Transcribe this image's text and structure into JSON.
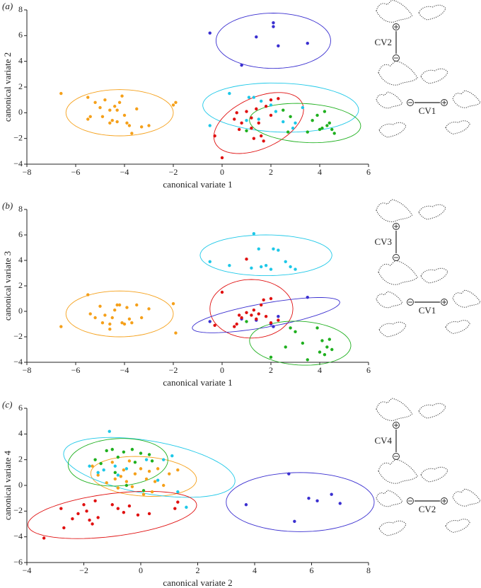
{
  "chart_data": [
    {
      "type": "scatter",
      "panel_label": "(a)",
      "xlabel": "canonical variate 1",
      "ylabel": "canonical variate 2",
      "xlim": [
        -8,
        6
      ],
      "ylim": [
        -4,
        8
      ],
      "xticks": [
        {
          "value": -8,
          "label": "−8"
        },
        {
          "value": -6,
          "label": "−6"
        },
        {
          "value": -4,
          "label": "−4"
        },
        {
          "value": -2,
          "label": "−2"
        },
        0,
        2,
        4,
        6
      ],
      "yticks": [
        {
          "value": -4,
          "label": "−4"
        },
        {
          "value": -2,
          "label": "−2"
        },
        0,
        2,
        4,
        6,
        8
      ],
      "series": [
        {
          "color": "#f5a01a",
          "x": [
            -6.6,
            -5.5,
            -5.4,
            -5.5,
            -5.0,
            -4.9,
            -4.8,
            -4.6,
            -4.5,
            -4.4,
            -4.3,
            -4.2,
            -4.1,
            -4.0,
            -3.9,
            -3.8,
            -3.7,
            -3.5,
            -3.3,
            -3.0,
            -4.6,
            -4.3,
            -2.0,
            -1.9,
            -5.2
          ],
          "y": [
            1.5,
            1.2,
            -0.3,
            -0.5,
            0.4,
            -0.3,
            1.0,
            0.2,
            -0.6,
            0.5,
            0.2,
            0.8,
            1.3,
            -0.2,
            -0.8,
            -1.0,
            -1.6,
            0.3,
            -1.1,
            -1.0,
            -0.8,
            -0.7,
            0.6,
            0.8,
            0.8
          ]
        },
        {
          "color": "#3a2fd0",
          "x": [
            -0.5,
            1.4,
            2.1,
            2.1,
            2.3,
            3.5,
            0.8
          ],
          "y": [
            6.2,
            5.9,
            7.0,
            6.7,
            5.2,
            5.4,
            3.7
          ]
        },
        {
          "color": "#1ec8e8",
          "x": [
            0.3,
            -0.5,
            1.1,
            1.3,
            1.6,
            2.0,
            2.2,
            2.5,
            2.9,
            3.0,
            3.3,
            1.5,
            1.0
          ],
          "y": [
            1.5,
            -1.0,
            1.2,
            1.2,
            0.9,
            0.6,
            0.1,
            -0.7,
            -1.2,
            -0.8,
            0.4,
            -0.5,
            -0.6
          ]
        },
        {
          "color": "#e01010",
          "x": [
            0.0,
            -0.3,
            0.5,
            0.6,
            0.8,
            1.0,
            1.2,
            1.3,
            1.4,
            1.5,
            1.6,
            1.7,
            1.8,
            2.0,
            2.3,
            2.0,
            0.7,
            1.2
          ],
          "y": [
            -3.5,
            -1.8,
            -0.5,
            0.0,
            -0.8,
            0.1,
            -0.4,
            -2.0,
            0.3,
            -0.8,
            -1.8,
            -2.2,
            0.5,
            1.0,
            1.1,
            -0.2,
            -1.3,
            -1.2
          ]
        },
        {
          "color": "#1fb01f",
          "x": [
            1.0,
            2.5,
            2.8,
            3.7,
            3.9,
            4.1,
            4.2,
            4.3,
            4.4,
            4.5,
            4.6,
            4.0,
            3.5,
            2.7
          ],
          "y": [
            -1.4,
            0.2,
            -0.3,
            -0.6,
            -0.2,
            -1.2,
            0.1,
            -1.0,
            -0.8,
            -1.3,
            -1.6,
            -1.3,
            -1.5,
            -1.5
          ]
        }
      ],
      "ellipses": [
        {
          "color": "#f5a01a",
          "center": [
            -4.2,
            0.0
          ],
          "radii": [
            2.2,
            1.8
          ],
          "angle": 0
        },
        {
          "color": "#3a2fd0",
          "center": [
            2.1,
            5.6
          ],
          "radii": [
            2.35,
            2.15
          ],
          "angle": 0
        },
        {
          "color": "#1ec8e8",
          "center": [
            2.4,
            0.4
          ],
          "radii": [
            3.2,
            1.9
          ],
          "angle": -5
        },
        {
          "color": "#e01010",
          "center": [
            1.5,
            -0.8
          ],
          "radii": [
            2.6,
            1.5
          ],
          "angle": 60
        },
        {
          "color": "#1fb01f",
          "center": [
            3.4,
            -0.8
          ],
          "radii": [
            2.3,
            1.5
          ],
          "angle": -10
        }
      ],
      "diagram": {
        "vertical": "CV2",
        "horizontal": "CV1"
      }
    },
    {
      "type": "scatter",
      "panel_label": "(b)",
      "xlabel": "canonical variate 1",
      "ylabel": "canonical variate 3",
      "xlim": [
        -8,
        6
      ],
      "ylim": [
        -4,
        8
      ],
      "xticks": [
        {
          "value": -8,
          "label": "−8"
        },
        {
          "value": -6,
          "label": "−6"
        },
        {
          "value": -4,
          "label": "−4"
        },
        {
          "value": -2,
          "label": "−2"
        },
        0,
        2,
        4,
        6
      ],
      "yticks": [
        {
          "value": -4,
          "label": "−4"
        },
        {
          "value": -2,
          "label": "−2"
        },
        0,
        2,
        4,
        6,
        8
      ],
      "series": [
        {
          "color": "#f5a01a",
          "x": [
            -6.6,
            -5.5,
            -5.4,
            -5.0,
            -4.9,
            -4.8,
            -4.6,
            -4.5,
            -4.4,
            -4.3,
            -4.2,
            -4.1,
            -4.0,
            -3.9,
            -3.8,
            -3.7,
            -3.5,
            -3.3,
            -3.0,
            -4.6,
            -2.0,
            -1.9,
            -5.2
          ],
          "y": [
            -1.2,
            1.3,
            -0.2,
            0.4,
            -0.9,
            -0.3,
            -1.4,
            -0.5,
            0.1,
            0.5,
            0.5,
            -0.9,
            -1.0,
            0.3,
            -0.6,
            -0.9,
            0.5,
            -0.5,
            0.2,
            -1.0,
            0.6,
            -1.7,
            -0.5
          ]
        },
        {
          "color": "#3a2fd0",
          "x": [
            -0.5,
            1.4,
            2.0,
            2.1,
            2.3,
            3.5,
            0.8
          ],
          "y": [
            -0.8,
            -0.7,
            -1.0,
            -1.2,
            -0.4,
            1.1,
            -0.6
          ]
        },
        {
          "color": "#1ec8e8",
          "x": [
            -0.5,
            0.3,
            1.3,
            1.5,
            1.2,
            1.6,
            2.0,
            2.3,
            2.6,
            2.8,
            3.0,
            2.1,
            1.8
          ],
          "y": [
            3.9,
            3.6,
            6.1,
            4.9,
            3.4,
            3.5,
            3.3,
            4.8,
            3.9,
            3.5,
            3.3,
            4.9,
            3.6
          ]
        },
        {
          "color": "#e01010",
          "x": [
            0.0,
            -0.3,
            0.5,
            0.6,
            0.8,
            1.0,
            1.2,
            1.3,
            1.4,
            1.5,
            1.6,
            1.7,
            1.8,
            2.0,
            2.3,
            2.0,
            0.7,
            1.0
          ],
          "y": [
            1.5,
            -1.1,
            -1.2,
            -1.0,
            -0.5,
            4.1,
            -0.3,
            0.1,
            -0.6,
            -0.2,
            0.5,
            0.9,
            -0.4,
            1.0,
            -0.7,
            -0.9,
            -0.3,
            -0.1
          ]
        },
        {
          "color": "#1fb01f",
          "x": [
            1.0,
            2.0,
            2.8,
            3.0,
            3.3,
            3.9,
            4.1,
            4.2,
            4.3,
            4.5,
            4.0,
            3.5,
            2.6,
            4.4
          ],
          "y": [
            -0.8,
            -3.6,
            -1.3,
            -1.6,
            -2.5,
            -1.3,
            -2.3,
            -3.4,
            -2.8,
            -3.0,
            -3.2,
            -3.8,
            -2.8,
            -2.2
          ]
        }
      ],
      "ellipses": [
        {
          "color": "#f5a01a",
          "center": [
            -4.2,
            -0.2
          ],
          "radii": [
            2.2,
            1.8
          ],
          "angle": 0
        },
        {
          "color": "#1ec8e8",
          "center": [
            1.8,
            4.4
          ],
          "radii": [
            2.7,
            1.6
          ],
          "angle": 0
        },
        {
          "color": "#e01010",
          "center": [
            1.2,
            0.2
          ],
          "radii": [
            1.7,
            2.3
          ],
          "angle": 0
        },
        {
          "color": "#3a2fd0",
          "center": [
            1.8,
            -0.3
          ],
          "radii": [
            3.2,
            0.9
          ],
          "angle": 20
        },
        {
          "color": "#1fb01f",
          "center": [
            3.2,
            -2.5
          ],
          "radii": [
            2.1,
            1.7
          ],
          "angle": -15
        }
      ],
      "diagram": {
        "vertical": "CV3",
        "horizontal": "CV1"
      }
    },
    {
      "type": "scatter",
      "panel_label": "(c)",
      "xlabel": "canonical variate 2",
      "ylabel": "canonical variate 4",
      "xlim": [
        -4,
        8
      ],
      "ylim": [
        -6,
        6
      ],
      "xticks": [
        {
          "value": -4,
          "label": "−4"
        },
        {
          "value": -2,
          "label": "−2"
        },
        0,
        2,
        4,
        6,
        8
      ],
      "yticks": [
        {
          "value": -6,
          "label": "−6"
        },
        {
          "value": -4,
          "label": "−4"
        },
        {
          "value": -2,
          "label": "−2"
        },
        0,
        2,
        4,
        6
      ],
      "series": [
        {
          "color": "#f5a01a",
          "x": [
            -1.7,
            -1.5,
            -1.2,
            -1.0,
            -0.9,
            -0.8,
            -0.6,
            -0.5,
            -0.4,
            -0.3,
            -0.2,
            0.0,
            0.1,
            0.2,
            0.3,
            0.5,
            0.6,
            0.8,
            1.0,
            1.3,
            -0.7,
            0.4
          ],
          "y": [
            1.5,
            0.8,
            0.2,
            1.8,
            0.5,
            -0.2,
            1.2,
            0.3,
            1.9,
            -0.1,
            0.9,
            1.3,
            -0.7,
            0.5,
            1.1,
            0.3,
            1.3,
            0.0,
            0.9,
            1.2,
            0.7,
            -0.5
          ]
        },
        {
          "color": "#3a2fd0",
          "x": [
            3.7,
            5.2,
            5.4,
            5.9,
            6.2,
            6.7,
            7.0
          ],
          "y": [
            -1.5,
            0.9,
            -2.8,
            -1.0,
            -1.2,
            -0.7,
            -1.4
          ]
        },
        {
          "color": "#1ec8e8",
          "x": [
            -1.1,
            -1.8,
            -1.5,
            -1.3,
            -0.9,
            -0.5,
            0.2,
            0.8,
            1.1,
            1.3,
            1.6,
            -0.8,
            0.6
          ],
          "y": [
            4.2,
            1.5,
            1.0,
            1.2,
            1.5,
            1.3,
            2.0,
            2.0,
            2.3,
            -0.5,
            -1.7,
            0.8,
            0.4
          ]
        },
        {
          "color": "#e01010",
          "x": [
            -3.4,
            -2.8,
            -2.7,
            -2.4,
            -2.0,
            -1.9,
            -1.8,
            -1.7,
            -1.5,
            -1.6,
            -1.0,
            -0.8,
            -0.6,
            -0.4,
            -0.1,
            0.3,
            1.2,
            1.3,
            -2.2
          ],
          "y": [
            -4.1,
            -1.8,
            -3.3,
            -2.6,
            -1.5,
            -2.0,
            -2.7,
            -3.0,
            -2.5,
            -1.2,
            -1.5,
            -1.8,
            -2.1,
            -1.6,
            -2.3,
            -2.2,
            -1.8,
            -1.3,
            -2.2
          ]
        },
        {
          "color": "#1fb01f",
          "x": [
            -1.6,
            -1.2,
            -1.0,
            -0.8,
            -0.6,
            -0.3,
            0.0,
            -0.2,
            0.3,
            -1.4,
            -0.9,
            0.1,
            -0.5,
            0.4
          ],
          "y": [
            2.0,
            2.7,
            2.8,
            2.2,
            2.6,
            2.8,
            2.5,
            1.8,
            2.4,
            1.7,
            1.0,
            -0.4,
            0.0,
            1.9
          ]
        }
      ],
      "ellipses": [
        {
          "color": "#f5a01a",
          "center": [
            0.1,
            0.7
          ],
          "radii": [
            1.9,
            1.5
          ],
          "angle": -20
        },
        {
          "color": "#1ec8e8",
          "center": [
            0.3,
            1.4
          ],
          "radii": [
            3.3,
            1.9
          ],
          "angle": -30
        },
        {
          "color": "#1fb01f",
          "center": [
            -0.8,
            1.8
          ],
          "radii": [
            1.7,
            1.9
          ],
          "angle": -30
        },
        {
          "color": "#e01010",
          "center": [
            -1.0,
            -2.3
          ],
          "radii": [
            3.1,
            1.6
          ],
          "angle": 20
        },
        {
          "color": "#3a2fd0",
          "center": [
            5.6,
            -1.3
          ],
          "radii": [
            2.6,
            2.3
          ],
          "angle": 0
        }
      ],
      "diagram": {
        "vertical": "CV4",
        "horizontal": "CV2"
      }
    }
  ]
}
